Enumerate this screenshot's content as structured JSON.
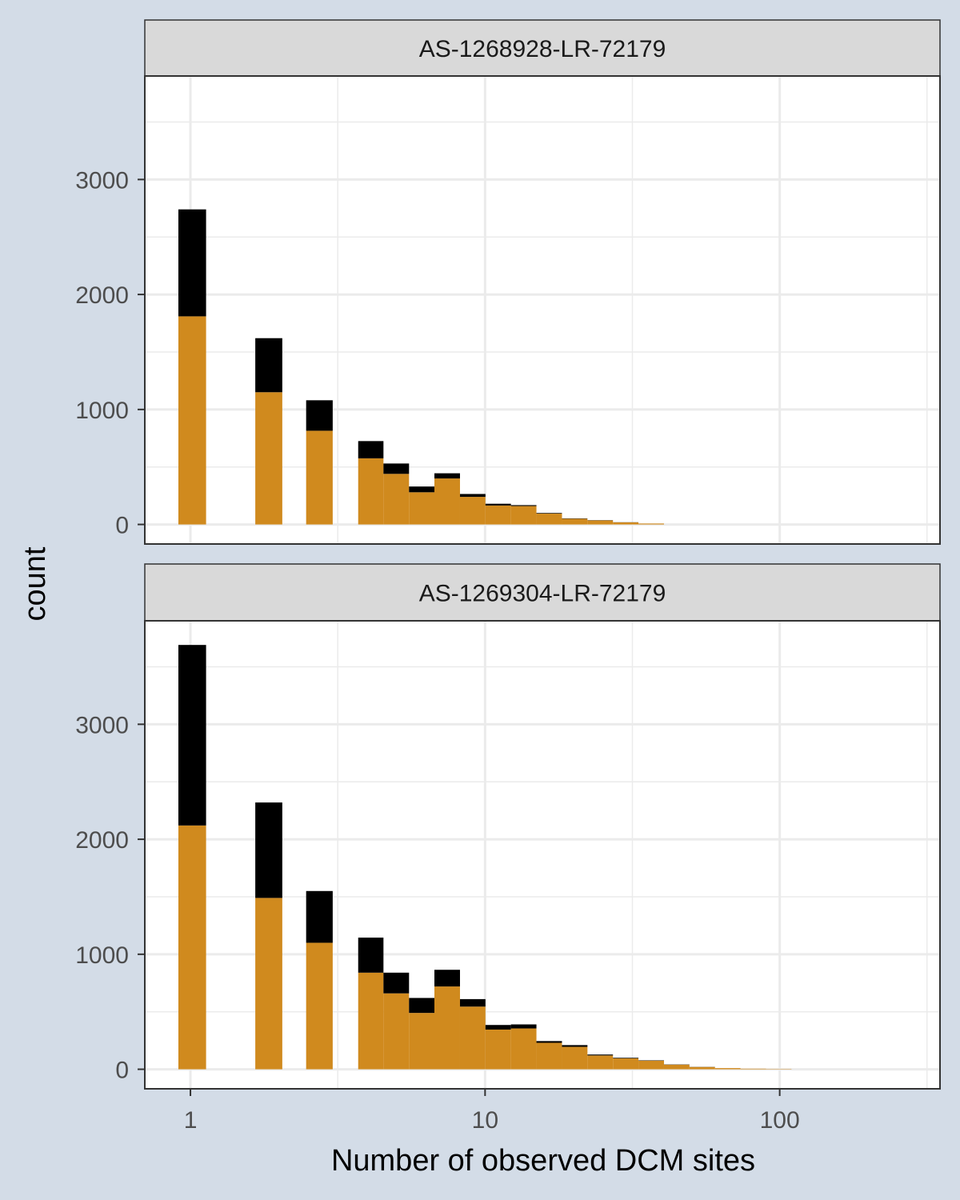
{
  "chart_data": {
    "type": "bar",
    "subtype": "stacked histogram, faceted",
    "xlabel": "Number of observed DCM sites",
    "ylabel": "count",
    "x_scale": "log10",
    "x_ticks": [
      1,
      10,
      100
    ],
    "x_tick_labels": [
      "1",
      "10",
      "100"
    ],
    "xlim": [
      0.7,
      350
    ],
    "y_ticks": [
      0,
      1000,
      2000,
      3000
    ],
    "y_tick_labels": [
      "0",
      "1000",
      "2000",
      "3000"
    ],
    "ylim": [
      -170,
      3900
    ],
    "grid": true,
    "legend": "none",
    "colors": {
      "background": "#d3dce7",
      "panel": "#ffffff",
      "grid": "#ebebeb",
      "strip": "#d9d9d9",
      "series_top": "#000000",
      "series_bottom": "#d08a1e"
    },
    "bin_edges": [
      0.91,
      1.13,
      1.66,
      2.05,
      2.47,
      3.04,
      3.71,
      4.52,
      5.52,
      6.73,
      8.22,
      10.03,
      12.24,
      14.94,
      18.24,
      22.26,
      27.17,
      33.16,
      40.48,
      49.41,
      60.31,
      73.61,
      89.86,
      109.68
    ],
    "panels": [
      {
        "strip_label": "AS-1268928-LR-72179",
        "bins": [
          {
            "x0": 0.91,
            "x1": 1.13,
            "bottom": 1810,
            "top": 930
          },
          {
            "x0": 1.66,
            "x1": 2.05,
            "bottom": 1150,
            "top": 470
          },
          {
            "x0": 2.47,
            "x1": 3.04,
            "bottom": 815,
            "top": 265
          },
          {
            "x0": 3.71,
            "x1": 4.52,
            "bottom": 575,
            "top": 150
          },
          {
            "x0": 4.52,
            "x1": 5.52,
            "bottom": 440,
            "top": 90
          },
          {
            "x0": 5.52,
            "x1": 6.73,
            "bottom": 280,
            "top": 50
          },
          {
            "x0": 6.73,
            "x1": 8.22,
            "bottom": 400,
            "top": 45
          },
          {
            "x0": 8.22,
            "x1": 10.03,
            "bottom": 240,
            "top": 25
          },
          {
            "x0": 10.03,
            "x1": 12.24,
            "bottom": 165,
            "top": 15
          },
          {
            "x0": 12.24,
            "x1": 14.94,
            "bottom": 160,
            "top": 8
          },
          {
            "x0": 14.94,
            "x1": 18.24,
            "bottom": 95,
            "top": 5
          },
          {
            "x0": 18.24,
            "x1": 22.26,
            "bottom": 50,
            "top": 3
          },
          {
            "x0": 22.26,
            "x1": 27.17,
            "bottom": 35,
            "top": 2
          },
          {
            "x0": 27.17,
            "x1": 33.16,
            "bottom": 18,
            "top": 1
          },
          {
            "x0": 33.16,
            "x1": 40.48,
            "bottom": 8,
            "top": 0
          }
        ]
      },
      {
        "strip_label": "AS-1269304-LR-72179",
        "bins": [
          {
            "x0": 0.91,
            "x1": 1.13,
            "bottom": 2120,
            "top": 1570
          },
          {
            "x0": 1.66,
            "x1": 2.05,
            "bottom": 1490,
            "top": 830
          },
          {
            "x0": 2.47,
            "x1": 3.04,
            "bottom": 1100,
            "top": 450
          },
          {
            "x0": 3.71,
            "x1": 4.52,
            "bottom": 840,
            "top": 305
          },
          {
            "x0": 4.52,
            "x1": 5.52,
            "bottom": 660,
            "top": 180
          },
          {
            "x0": 5.52,
            "x1": 6.73,
            "bottom": 490,
            "top": 130
          },
          {
            "x0": 6.73,
            "x1": 8.22,
            "bottom": 720,
            "top": 145
          },
          {
            "x0": 8.22,
            "x1": 10.03,
            "bottom": 545,
            "top": 65
          },
          {
            "x0": 10.03,
            "x1": 12.24,
            "bottom": 345,
            "top": 40
          },
          {
            "x0": 12.24,
            "x1": 14.94,
            "bottom": 355,
            "top": 35
          },
          {
            "x0": 14.94,
            "x1": 18.24,
            "bottom": 230,
            "top": 15
          },
          {
            "x0": 18.24,
            "x1": 22.26,
            "bottom": 195,
            "top": 15
          },
          {
            "x0": 22.26,
            "x1": 27.17,
            "bottom": 120,
            "top": 8
          },
          {
            "x0": 27.17,
            "x1": 33.16,
            "bottom": 95,
            "top": 5
          },
          {
            "x0": 33.16,
            "x1": 40.48,
            "bottom": 75,
            "top": 3
          },
          {
            "x0": 40.48,
            "x1": 49.41,
            "bottom": 40,
            "top": 2
          },
          {
            "x0": 49.41,
            "x1": 60.31,
            "bottom": 20,
            "top": 1
          },
          {
            "x0": 60.31,
            "x1": 73.61,
            "bottom": 10,
            "top": 0
          },
          {
            "x0": 73.61,
            "x1": 89.86,
            "bottom": 5,
            "top": 0
          },
          {
            "x0": 89.86,
            "x1": 109.68,
            "bottom": 3,
            "top": 0
          }
        ]
      }
    ]
  }
}
